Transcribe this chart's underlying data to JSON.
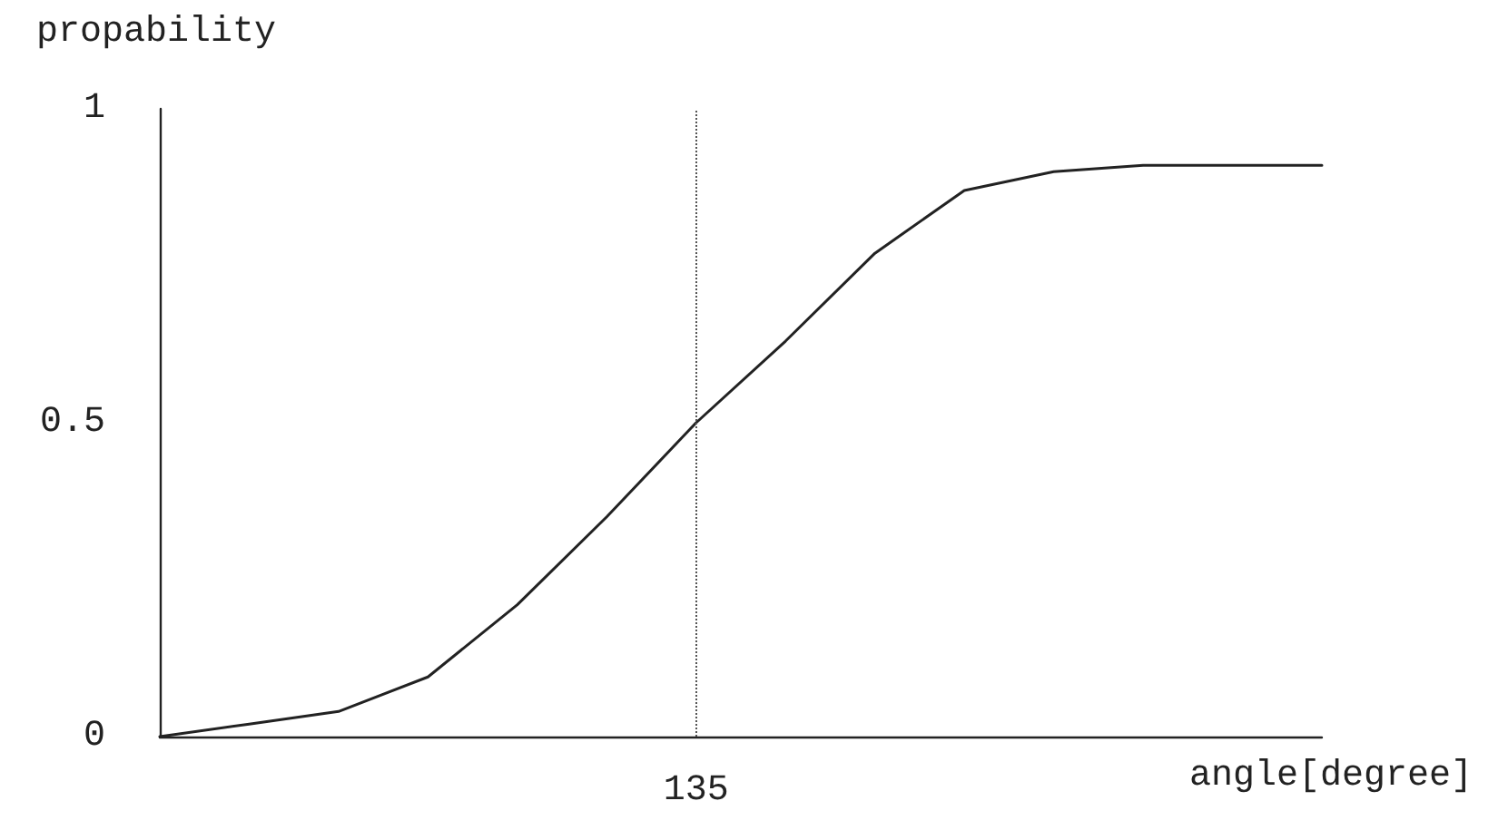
{
  "chart_data": {
    "type": "line",
    "xlabel": "angle[degree]",
    "ylabel": "propability",
    "categories": [
      null,
      null,
      null,
      null,
      null,
      null,
      "135",
      null,
      null,
      null,
      null,
      null,
      null,
      null
    ],
    "series": [
      {
        "color": "#222222",
        "values": [
          0,
          0.02,
          0.04,
          0.095,
          0.21,
          0.35,
          0.5,
          0.63,
          0.77,
          0.87,
          0.9,
          0.91,
          0.91,
          0.91
        ]
      }
    ],
    "ylim": [
      0,
      1
    ],
    "yticks": [
      0,
      0.5,
      1
    ],
    "ref_lines": [
      {
        "axis": "x",
        "value": "135",
        "line_style": "dotted",
        "color": "#555555"
      }
    ],
    "marker": "none",
    "line_style": "solid"
  }
}
